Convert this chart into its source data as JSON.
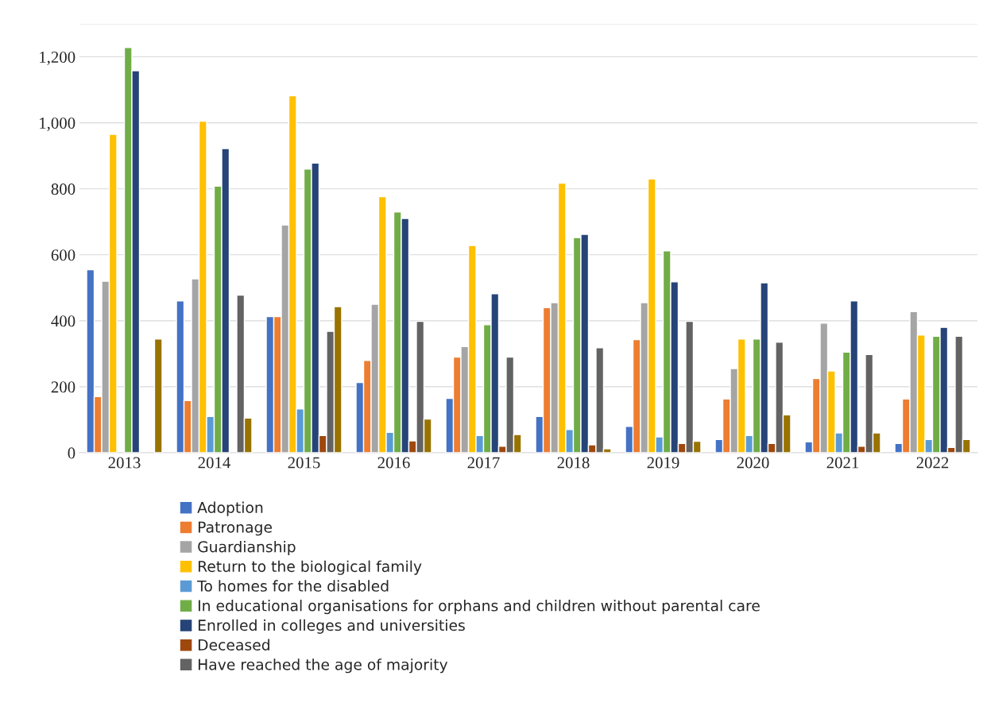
{
  "chart_data": {
    "type": "bar",
    "categories": [
      "2013",
      "2014",
      "2015",
      "2016",
      "2017",
      "2018",
      "2019",
      "2020",
      "2021",
      "2022"
    ],
    "series": [
      {
        "name": "Adoption",
        "color": "#4472c4",
        "values": [
          555,
          460,
          413,
          213,
          165,
          110,
          80,
          40,
          33,
          28
        ]
      },
      {
        "name": "Patronage",
        "color": "#ed7d31",
        "values": [
          170,
          158,
          413,
          280,
          290,
          440,
          343,
          163,
          225,
          163
        ]
      },
      {
        "name": "Guardianship",
        "color": "#a5a5a5",
        "values": [
          520,
          527,
          690,
          450,
          322,
          455,
          455,
          255,
          393,
          428
        ]
      },
      {
        "name": "Return to the biological family",
        "color": "#ffc000",
        "values": [
          965,
          1005,
          1082,
          776,
          628,
          817,
          830,
          345,
          248,
          357
        ]
      },
      {
        "name": "To homes for the disabled",
        "color": "#5b9bd5",
        "values": [
          null,
          110,
          133,
          62,
          52,
          70,
          48,
          52,
          60,
          40
        ]
      },
      {
        "name": "In educational organisations for orphans and children without parental care",
        "color": "#70ad47",
        "values": [
          1228,
          808,
          860,
          730,
          388,
          652,
          612,
          345,
          305,
          353
        ]
      },
      {
        "name": "Enrolled in colleges and universities",
        "color": "#264478",
        "values": [
          1158,
          922,
          878,
          710,
          482,
          662,
          518,
          515,
          460,
          380
        ]
      },
      {
        "name": "Deceased",
        "color": "#9e480e",
        "values": [
          null,
          null,
          52,
          36,
          20,
          24,
          28,
          28,
          20,
          16
        ]
      },
      {
        "name": "Have reached the age of majority",
        "color": "#636363",
        "values": [
          null,
          478,
          368,
          398,
          290,
          318,
          398,
          335,
          298,
          353
        ]
      },
      {
        "color": "#997300",
        "values": [
          345,
          105,
          443,
          102,
          55,
          12,
          35,
          115,
          60,
          40
        ]
      }
    ],
    "ylim": [
      0,
      1300
    ],
    "yticks": [
      0,
      {
        "value": 200,
        "label": "200"
      },
      {
        "value": 400,
        "label": "400"
      },
      {
        "value": 600,
        "label": "600"
      },
      {
        "value": 800,
        "label": "800"
      },
      {
        "value": 1000,
        "label": "1,000"
      },
      {
        "value": 1200,
        "label": "1,200"
      },
      {
        "value": 1300,
        "label": null
      }
    ],
    "grid": "y",
    "legend": "bottom"
  }
}
